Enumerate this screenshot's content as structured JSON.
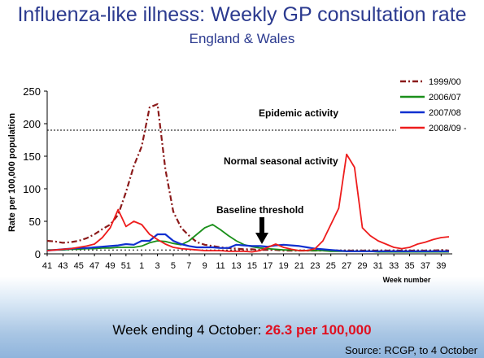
{
  "header": {
    "title": "Influenza-like illness: Weekly GP consultation rate",
    "subtitle": "England & Wales"
  },
  "footer": {
    "week_prefix": "Week ending 4 October: ",
    "week_value": "26.3 per 100,000",
    "source": "Source: RCGP, to 4 October"
  },
  "chart_data": {
    "type": "line",
    "ylabel": "Rate per 100,000 population",
    "xlabel": "Week number",
    "ylim": [
      0,
      250
    ],
    "yticks": [
      0,
      50,
      100,
      150,
      200,
      250
    ],
    "x_tick_labels": [
      "41",
      "43",
      "45",
      "47",
      "49",
      "51",
      "1",
      "3",
      "5",
      "7",
      "9",
      "11",
      "13",
      "15",
      "17",
      "19",
      "21",
      "23",
      "25",
      "27",
      "29",
      "31",
      "33",
      "35",
      "37",
      "39"
    ],
    "annotations": {
      "epidemic": "Epidemic activity",
      "normal": "Normal seasonal activity",
      "baseline": "Baseline threshold"
    },
    "thresholds": {
      "epidemic": 190,
      "baseline": 6
    },
    "series": [
      {
        "name": "1999/00",
        "color": "#8b1a1a",
        "style": "dashdot",
        "values": [
          20,
          19,
          17,
          18,
          20,
          24,
          30,
          38,
          45,
          60,
          95,
          135,
          165,
          225,
          230,
          130,
          65,
          40,
          28,
          18,
          14,
          12,
          10,
          9,
          8,
          7,
          7,
          6,
          6,
          6,
          5,
          5,
          5,
          5,
          5,
          5,
          5,
          5,
          5,
          5,
          5,
          5,
          5,
          5,
          5,
          5,
          5,
          5,
          5,
          5,
          6,
          5
        ]
      },
      {
        "name": "2006/07",
        "color": "#1a8f1a",
        "style": "solid",
        "values": [
          6,
          6,
          6,
          7,
          7,
          8,
          8,
          9,
          9,
          10,
          10,
          10,
          12,
          17,
          20,
          19,
          16,
          14,
          20,
          30,
          40,
          45,
          37,
          28,
          20,
          14,
          11,
          9,
          8,
          7,
          6,
          6,
          5,
          5,
          5,
          5,
          4,
          4,
          4,
          4,
          4,
          4,
          3,
          3,
          3,
          3,
          3,
          3,
          3,
          3,
          3,
          3
        ]
      },
      {
        "name": "2007/08",
        "color": "#1030d0",
        "style": "solid",
        "values": [
          5,
          6,
          7,
          8,
          9,
          9,
          10,
          11,
          12,
          13,
          15,
          14,
          20,
          20,
          30,
          30,
          20,
          15,
          12,
          10,
          10,
          10,
          9,
          9,
          14,
          13,
          12,
          12,
          11,
          13,
          14,
          13,
          12,
          10,
          8,
          7,
          6,
          5,
          4,
          4,
          4,
          4,
          4,
          4,
          4,
          4,
          4,
          4,
          4,
          4,
          4,
          4
        ]
      },
      {
        "name": "2008/09 -",
        "color": "#ee1c1c",
        "style": "solid",
        "values": [
          5,
          6,
          7,
          8,
          10,
          12,
          15,
          25,
          40,
          68,
          42,
          50,
          45,
          30,
          22,
          15,
          10,
          8,
          7,
          6,
          5,
          5,
          5,
          4,
          4,
          4,
          3,
          5,
          10,
          15,
          10,
          7,
          5,
          5,
          8,
          20,
          45,
          70,
          153,
          133,
          40,
          28,
          20,
          15,
          10,
          8,
          10,
          15,
          18,
          22,
          25,
          26.3
        ]
      }
    ]
  }
}
